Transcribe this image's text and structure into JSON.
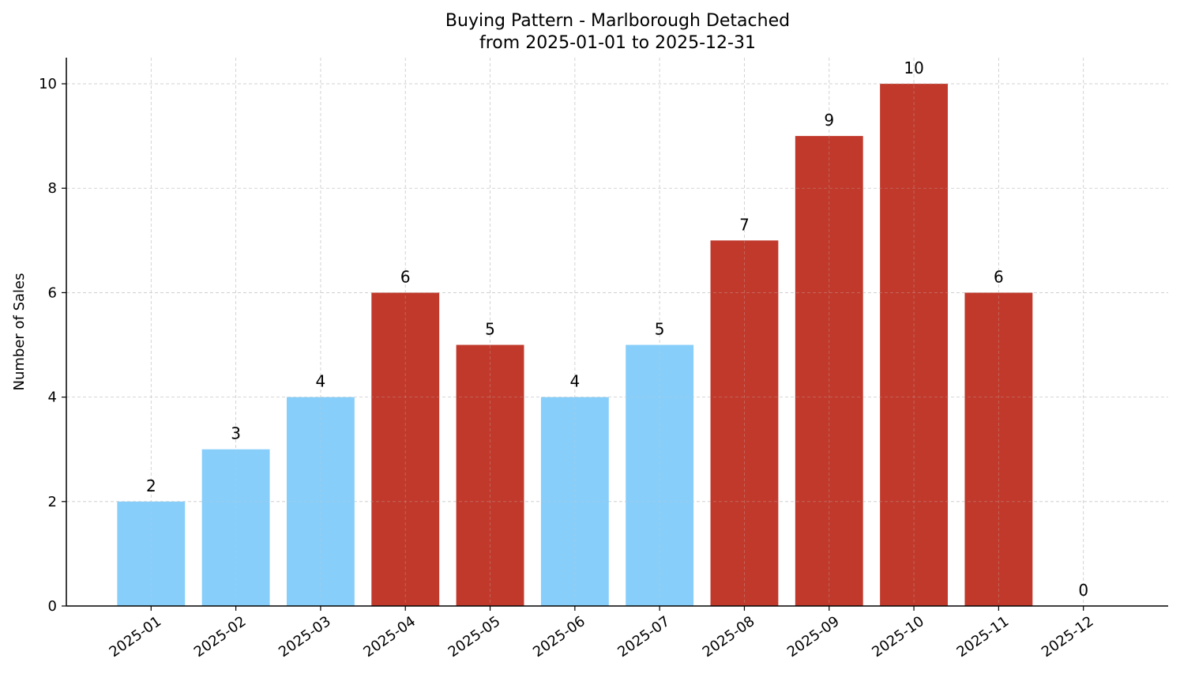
{
  "chart_data": {
    "type": "bar",
    "title": "Buying Pattern - Marlborough Detached",
    "subtitle": "from 2025-01-01 to 2025-12-31",
    "xlabel": "",
    "ylabel": "Number of Sales",
    "categories": [
      "2025-01",
      "2025-02",
      "2025-03",
      "2025-04",
      "2025-05",
      "2025-06",
      "2025-07",
      "2025-08",
      "2025-09",
      "2025-10",
      "2025-11",
      "2025-12"
    ],
    "values": [
      2,
      3,
      4,
      6,
      5,
      4,
      5,
      7,
      9,
      10,
      6,
      0
    ],
    "bar_colors": [
      "#87CEFA",
      "#87CEFA",
      "#87CEFA",
      "#C0392B",
      "#C0392B",
      "#87CEFA",
      "#87CEFA",
      "#C0392B",
      "#C0392B",
      "#C0392B",
      "#C0392B",
      "#C0392B"
    ],
    "ylim": [
      0,
      10.5
    ],
    "yticks": [
      0,
      2,
      4,
      6,
      8,
      10
    ],
    "grid": true,
    "data_labels": true
  }
}
